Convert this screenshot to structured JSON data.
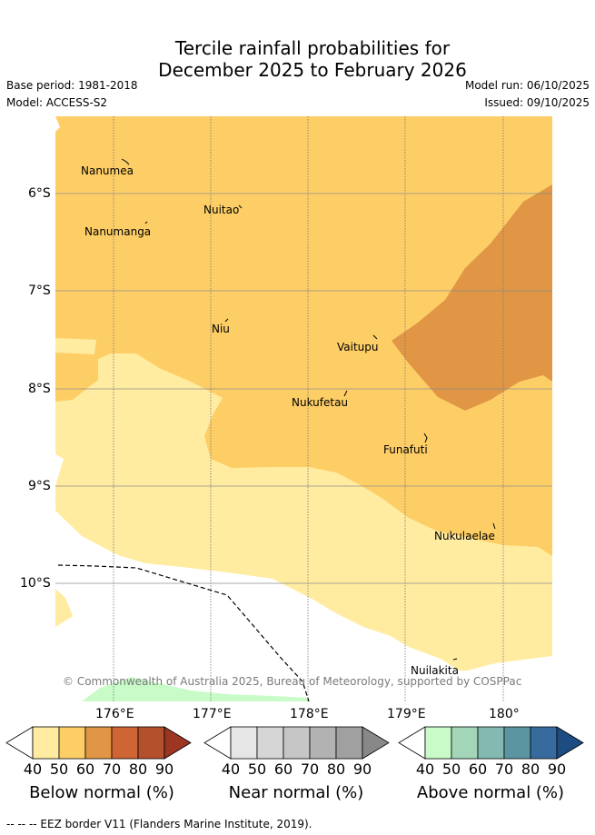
{
  "title": {
    "line1": "Tercile rainfall probabilities for",
    "line2": "December 2025 to February 2026"
  },
  "meta": {
    "base_period": "Base period: 1981-2018",
    "model": "Model: ACCESS-S2",
    "model_run": "Model run: 06/10/2025",
    "issued": "Issued: 09/10/2025"
  },
  "axes": {
    "lat_labels": [
      "6°S",
      "7°S",
      "8°S",
      "9°S",
      "10°S"
    ],
    "lon_labels": [
      "176°E",
      "177°E",
      "178°E",
      "179°E",
      "180°"
    ]
  },
  "places": [
    "Nanumea",
    "Nuitao",
    "Nanumanga",
    "Niu",
    "Vaitupu",
    "Nukufetau",
    "Funafuti",
    "Nukulaelae",
    "Nuilakita"
  ],
  "copyright": "© Commonwealth of Australia 2025, Bureau of Meteorology, supported by COSPPac",
  "legends": [
    {
      "title": "Below normal (%)",
      "ticks": [
        "40",
        "50",
        "60",
        "70",
        "80",
        "90"
      ],
      "colors": [
        "#ffffff",
        "#ffeca0",
        "#fece66",
        "#e09645",
        "#cf6434",
        "#b5502c",
        "#9d3523"
      ]
    },
    {
      "title": "Near normal (%)",
      "ticks": [
        "40",
        "50",
        "60",
        "70",
        "80",
        "90"
      ],
      "colors": [
        "#ffffff",
        "#e6e6e6",
        "#d6d6d6",
        "#c6c6c6",
        "#b2b2b2",
        "#a0a0a0",
        "#888888"
      ]
    },
    {
      "title": "Above normal (%)",
      "ticks": [
        "40",
        "50",
        "60",
        "70",
        "80",
        "90"
      ],
      "colors": [
        "#ffffff",
        "#c8fbc8",
        "#a3d6b8",
        "#83b9b0",
        "#5b95a2",
        "#376b9e",
        "#1d4c82"
      ]
    }
  ],
  "footer": "-- -- -- EEZ border V11 (Flanders Marine Institute, 2019)."
}
